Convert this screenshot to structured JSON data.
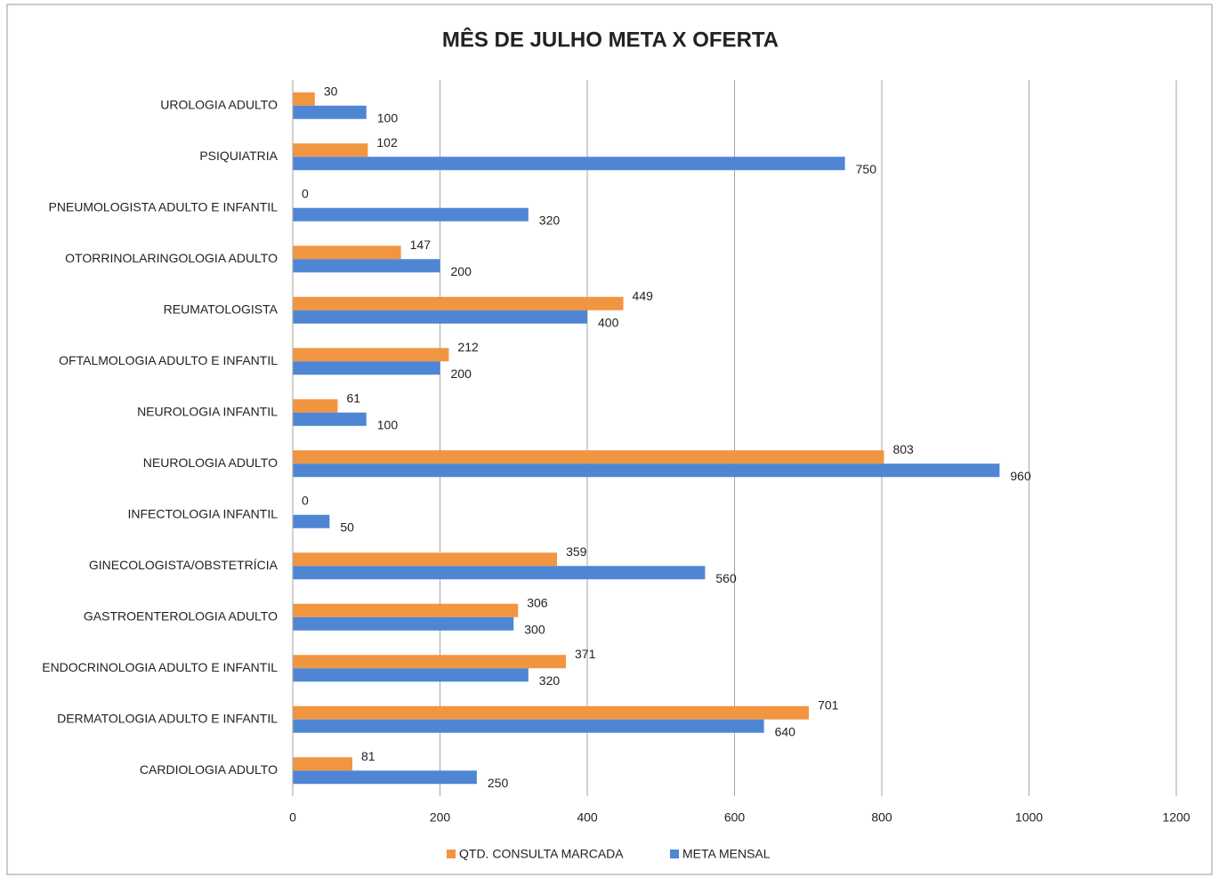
{
  "chart_data": {
    "type": "hbar",
    "title": "MÊS DE JULHO META X OFERTA",
    "categories": [
      "CARDIOLOGIA ADULTO",
      "DERMATOLOGIA ADULTO E INFANTIL",
      "ENDOCRINOLOGIA ADULTO E INFANTIL",
      "GASTROENTEROLOGIA ADULTO",
      "GINECOLOGISTA/OBSTETRÍCIA",
      "INFECTOLOGIA INFANTIL",
      "NEUROLOGIA ADULTO",
      "NEUROLOGIA INFANTIL",
      "OFTALMOLOGIA ADULTO E INFANTIL",
      "REUMATOLOGISTA",
      "OTORRINOLARINGOLOGIA ADULTO",
      "PNEUMOLOGISTA ADULTO E INFANTIL",
      "PSIQUIATRIA",
      "UROLOGIA ADULTO"
    ],
    "series": [
      {
        "name": "QTD. CONSULTA MARCADA",
        "color": "#f29541",
        "values": [
          81,
          701,
          371,
          306,
          359,
          0,
          803,
          61,
          212,
          449,
          147,
          0,
          102,
          30
        ]
      },
      {
        "name": "META MENSAL",
        "color": "#4f86d4",
        "values": [
          250,
          640,
          320,
          300,
          560,
          50,
          960,
          100,
          200,
          400,
          200,
          320,
          750,
          100
        ]
      }
    ],
    "xlim": [
      0,
      1200
    ],
    "xticks": [
      0,
      200,
      400,
      600,
      800,
      1000,
      1200
    ],
    "grid": true,
    "legend": "bottom"
  }
}
